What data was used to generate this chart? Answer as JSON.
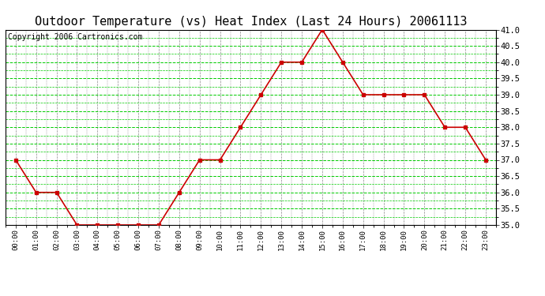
{
  "title": "Outdoor Temperature (vs) Heat Index (Last 24 Hours) 20061113",
  "copyright": "Copyright 2006 Cartronics.com",
  "hours": [
    "00:00",
    "01:00",
    "02:00",
    "03:00",
    "04:00",
    "05:00",
    "06:00",
    "07:00",
    "08:00",
    "09:00",
    "10:00",
    "11:00",
    "12:00",
    "13:00",
    "14:00",
    "15:00",
    "16:00",
    "17:00",
    "18:00",
    "19:00",
    "20:00",
    "21:00",
    "22:00",
    "23:00"
  ],
  "values": [
    37.0,
    36.0,
    36.0,
    35.0,
    35.0,
    35.0,
    35.0,
    35.0,
    36.0,
    37.0,
    37.0,
    38.0,
    39.0,
    40.0,
    40.0,
    41.0,
    40.0,
    39.0,
    39.0,
    39.0,
    39.0,
    38.0,
    38.0,
    37.0
  ],
  "ylim": [
    35.0,
    41.0
  ],
  "ytick_step": 0.5,
  "line_color": "#cc0000",
  "marker_color": "#cc0000",
  "plot_bg_color": "#ffffff",
  "grid_color_green": "#00cc00",
  "grid_color_gray": "#888888",
  "title_fontsize": 11,
  "copyright_fontsize": 7
}
